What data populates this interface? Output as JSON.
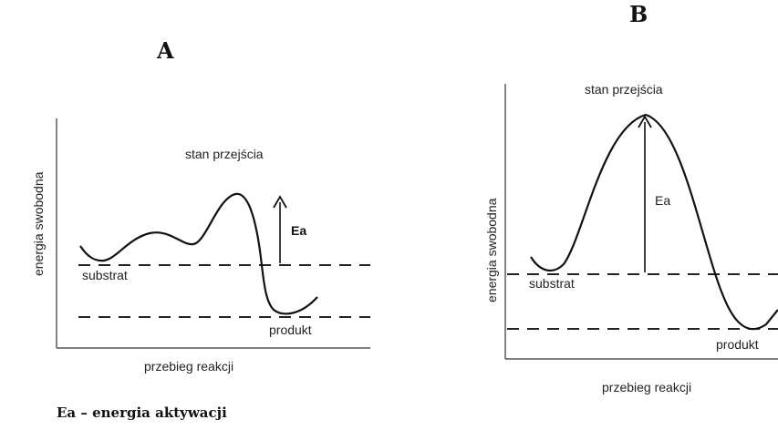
{
  "panel_a": {
    "letter": "A",
    "y_axis_label": "energia swobodna",
    "x_axis_label": "przebieg reakcji",
    "transition_label": "stan przejścia",
    "substrate_label": "substrat",
    "product_label": "produkt",
    "ea_label": "Ea"
  },
  "panel_b": {
    "letter": "B",
    "y_axis_label": "energia swobodna",
    "x_axis_label": "przebieg reakcji",
    "transition_label": "stan przejścia",
    "substrate_label": "substrat",
    "product_label": "produkt",
    "ea_label": "Ea"
  },
  "legend": {
    "caption": "Ea – energia aktywacji"
  }
}
